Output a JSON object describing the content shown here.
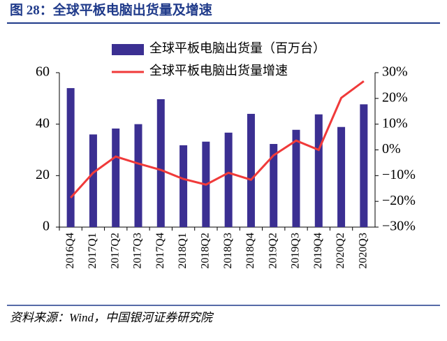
{
  "chart_data": {
    "type": "bar_line",
    "title": "图 28：全球平板电脑出货量及增速",
    "source": "资料来源：Wind，中国银河证券研究院",
    "categories": [
      "2016Q4",
      "2017Q1",
      "2017Q2",
      "2017Q3",
      "2017Q4",
      "2018Q1",
      "2018Q2",
      "2018Q3",
      "2018Q4",
      "2019Q2",
      "2019Q3",
      "2019Q4",
      "2020Q2",
      "2020Q3"
    ],
    "series": [
      {
        "name": "全球平板电脑出货量（百万台）",
        "type": "bar",
        "color": "#3b2f92",
        "values": [
          54,
          36,
          38.3,
          40,
          49.7,
          31.8,
          33.2,
          36.7,
          44,
          32.3,
          37.8,
          43.8,
          38.9,
          47.7
        ]
      },
      {
        "name": "全球平板电脑出货量增速",
        "type": "line",
        "color": "#f03a3a",
        "axis": "y2",
        "values": [
          -18.6,
          -8.9,
          -2.6,
          -5.3,
          -7.8,
          -11.3,
          -13.5,
          -8.9,
          -11.6,
          -2.1,
          3.6,
          0,
          20.2,
          26.7
        ]
      }
    ],
    "ylim": [
      0,
      60
    ],
    "yticks": [
      0,
      20,
      40,
      60
    ],
    "y2lim": [
      -30,
      30
    ],
    "y2ticks": [
      {
        "value": -30,
        "label": "−30%"
      },
      {
        "value": -20,
        "label": "−20%"
      },
      {
        "value": -10,
        "label": "−10%"
      },
      {
        "value": 0,
        "label": "0%"
      },
      {
        "value": 10,
        "label": "10%"
      },
      {
        "value": 20,
        "label": "20%"
      },
      {
        "value": 30,
        "label": "30%"
      }
    ]
  }
}
